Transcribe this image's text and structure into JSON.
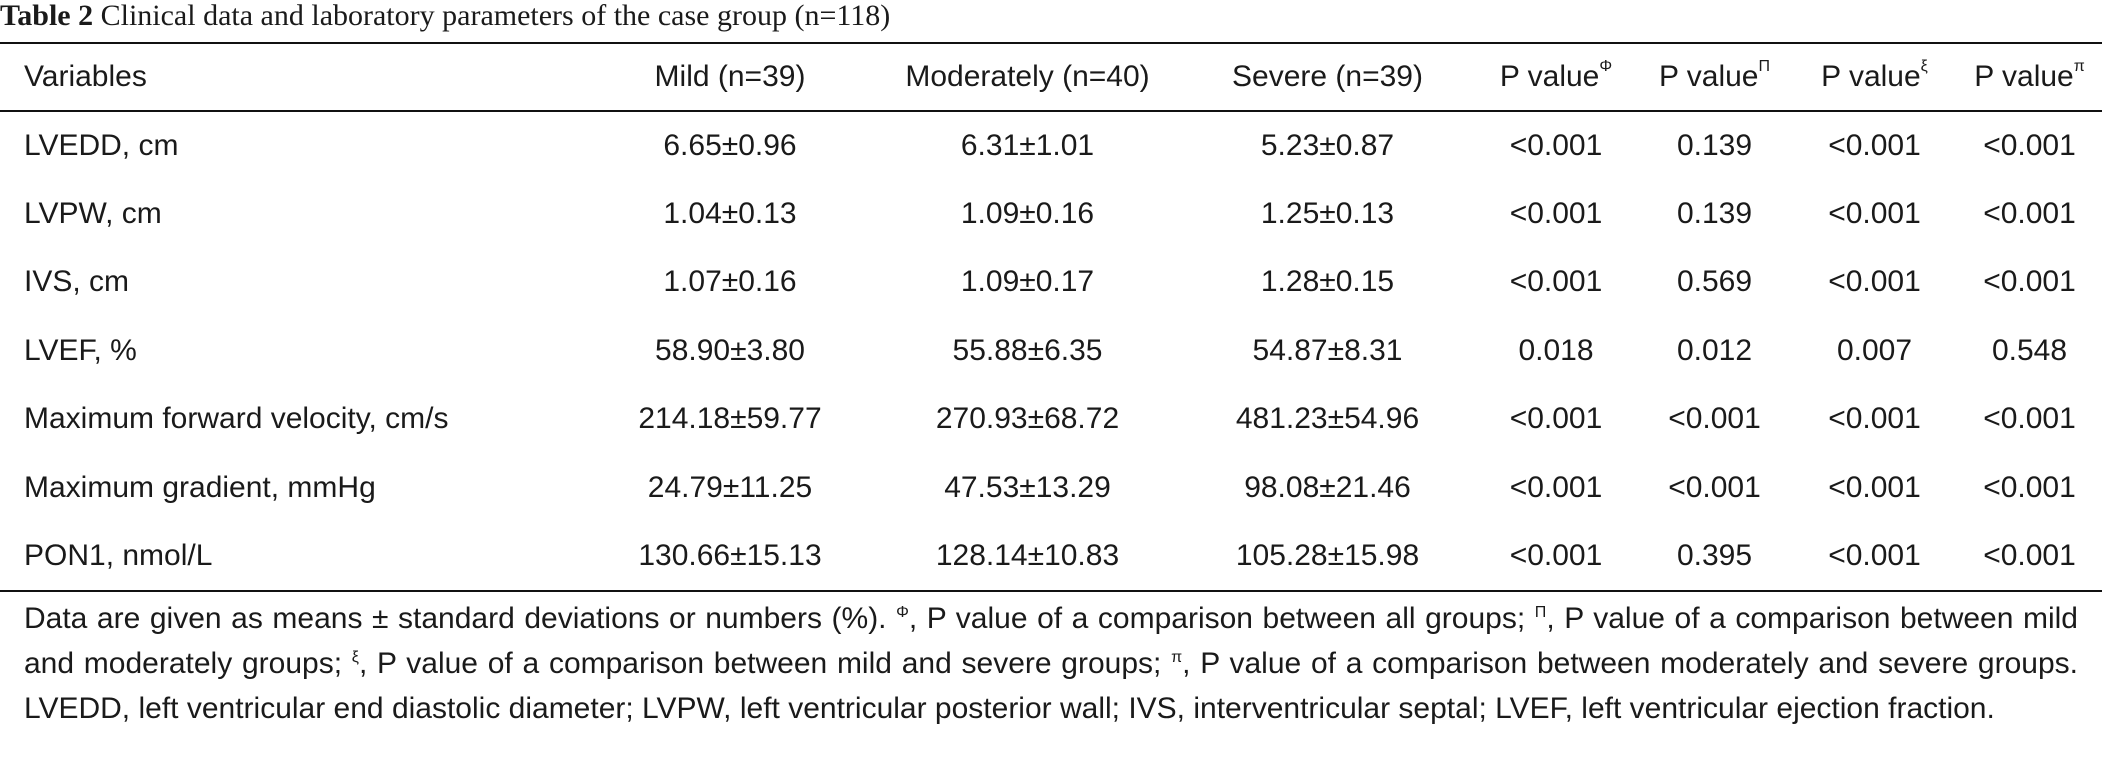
{
  "caption": {
    "label": "Table 2",
    "text": "Clinical data and laboratory parameters of the case group (n=118)"
  },
  "table": {
    "headers": [
      {
        "text": "Variables",
        "sup": ""
      },
      {
        "text": "Mild (n=39)",
        "sup": ""
      },
      {
        "text": "Moderately (n=40)",
        "sup": ""
      },
      {
        "text": "Severe (n=39)",
        "sup": ""
      },
      {
        "text": "P value",
        "sup": "Φ"
      },
      {
        "text": "P value",
        "sup": "Π"
      },
      {
        "text": "P value",
        "sup": "ξ"
      },
      {
        "text": "P value",
        "sup": "π"
      }
    ],
    "rows": [
      [
        "LVEDD, cm",
        "6.65±0.96",
        "6.31±1.01",
        "5.23±0.87",
        "<0.001",
        "0.139",
        "<0.001",
        "<0.001"
      ],
      [
        "LVPW, cm",
        "1.04±0.13",
        "1.09±0.16",
        "1.25±0.13",
        "<0.001",
        "0.139",
        "<0.001",
        "<0.001"
      ],
      [
        "IVS, cm",
        "1.07±0.16",
        "1.09±0.17",
        "1.28±0.15",
        "<0.001",
        "0.569",
        "<0.001",
        "<0.001"
      ],
      [
        "LVEF, %",
        "58.90±3.80",
        "55.88±6.35",
        "54.87±8.31",
        "0.018",
        "0.012",
        "0.007",
        "0.548"
      ],
      [
        "Maximum forward velocity, cm/s",
        "214.18±59.77",
        "270.93±68.72",
        "481.23±54.96",
        "<0.001",
        "<0.001",
        "<0.001",
        "<0.001"
      ],
      [
        "Maximum gradient, mmHg",
        "24.79±11.25",
        "47.53±13.29",
        "98.08±21.46",
        "<0.001",
        "<0.001",
        "<0.001",
        "<0.001"
      ],
      [
        "PON1, nmol/L",
        "130.66±15.13",
        "128.14±10.83",
        "105.28±15.98",
        "<0.001",
        "0.395",
        "<0.001",
        "<0.001"
      ]
    ]
  },
  "footnote": {
    "t0": "Data are given as means ± standard deviations or numbers (%). ",
    "s1": "Φ",
    "t1": ", P value of a comparison between all groups; ",
    "s2": "Π",
    "t2": ", P value of a comparison between mild and moderately groups; ",
    "s3": "ξ",
    "t3": ", P value of a comparison between mild and severe groups; ",
    "s4": "π",
    "t4": ", P value of a comparison between moderately and severe groups. LVEDD, left ventricular end diastolic diameter; LVPW, left ventricular posterior wall; IVS, interventricular septal; LVEF, left ventricular ejection fraction."
  }
}
